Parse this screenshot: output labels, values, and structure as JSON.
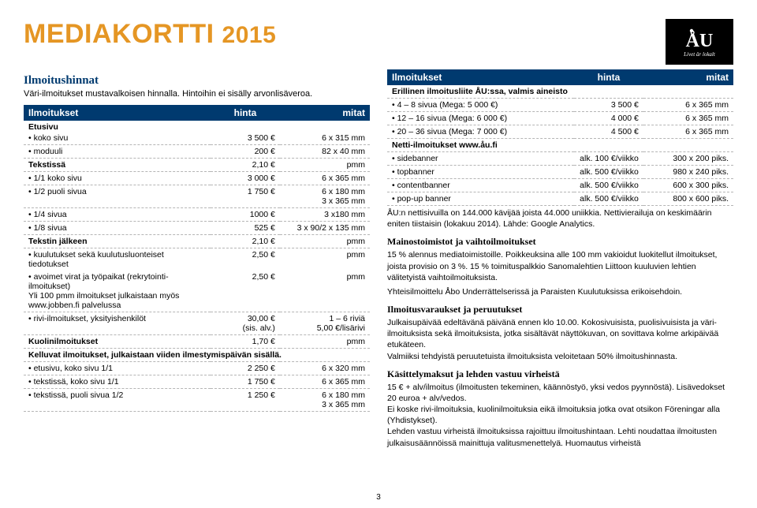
{
  "header": {
    "title_main": "MEDIAKORTTI",
    "title_year": "2015",
    "logo_tag": "Livet är lokalt"
  },
  "left": {
    "section": "Ilmoitushinnat",
    "intro": "Väri-ilmoitukset mustavalkoisen hinnalla. Hintoihin ei sisälly arvonlisäveroa.",
    "thead": [
      "Ilmoitukset",
      "hinta",
      "mitat"
    ],
    "rows": [
      {
        "c1": "Etusivu",
        "c2": "",
        "c3": "",
        "cls": "etusivu"
      },
      {
        "c1": "• koko sivu",
        "c2": "3 500 €",
        "c3": "6 x 315 mm"
      },
      {
        "c1": "• moduuli",
        "c2": "200 €",
        "c3": "82 x 40 mm"
      },
      {
        "c1": "Tekstissä",
        "c2": "2,10 €",
        "c3": "pmm",
        "bold": true
      },
      {
        "c1": "• 1/1 koko sivu",
        "c2": "3 000 €",
        "c3": "6 x 365 mm"
      },
      {
        "c1": "• 1/2 puoli sivua",
        "c2": "1 750 €",
        "c3": "6 x 180 mm\n3 x 365 mm"
      },
      {
        "c1": "• 1/4 sivua",
        "c2": "1000 €",
        "c3": "3 x180 mm"
      },
      {
        "c1": "• 1/8 sivua",
        "c2": "525 €",
        "c3": "3 x 90/2 x 135 mm"
      },
      {
        "c1": "Tekstin jälkeen",
        "c2": "2,10 €",
        "c3": "pmm",
        "bold": true
      },
      {
        "c1": "• kuulutukset sekä kuulutusluonteiset tiedotukset",
        "c2": "2,50 €",
        "c3": "pmm",
        "noborder": true
      },
      {
        "c1": "• avoimet virat ja työpaikat (rekrytointi-ilmoitukset)\nYli 100 pmm ilmoitukset julkaistaan myös\nwww.jobben.fi palvelussa",
        "c2": "2,50 €",
        "c3": "pmm"
      },
      {
        "c1": "• rivi-ilmoitukset, yksityishenkilöt",
        "c2": "30,00 €\n(sis. alv.)",
        "c3": "1 – 6 riviä\n5,00 €/lisärivi"
      },
      {
        "c1": "Kuolinilmoitukset",
        "c2": "1,70 €",
        "c3": "pmm",
        "bold": true
      },
      {
        "c1": "Kelluvat ilmoitukset, julkaistaan viiden ilmestymispäivän sisällä.",
        "c2": "",
        "c3": "",
        "bold": true,
        "span": true
      },
      {
        "c1": "• etusivu, koko sivu 1/1",
        "c2": "2 250 €",
        "c3": "6 x 320 mm"
      },
      {
        "c1": "• tekstissä, koko sivu 1/1",
        "c2": "1 750 €",
        "c3": "6 x 365 mm"
      },
      {
        "c1": "• tekstissä, puoli sivua 1/2",
        "c2": "1 250 €",
        "c3": "6 x 180 mm\n3 x 365 mm"
      }
    ]
  },
  "right": {
    "thead": [
      "Ilmoitukset",
      "hinta",
      "mitat"
    ],
    "pre_row": {
      "c1": "Erillinen ilmoitusliite ÅU:ssa, valmis aineisto",
      "bold": true,
      "span": true
    },
    "rows": [
      {
        "c1": "• 4 – 8 sivua (Mega: 5 000 €)",
        "c2": "3 500 €",
        "c3": "6 x 365 mm"
      },
      {
        "c1": "• 12 – 16 sivua (Mega: 6 000 €)",
        "c2": "4 000 €",
        "c3": "6 x 365 mm"
      },
      {
        "c1": "• 20 – 36 sivua (Mega: 7 000 €)",
        "c2": "4 500 €",
        "c3": "6 x 365 mm"
      },
      {
        "c1": "Netti-ilmoitukset   www.åu.fi",
        "c2": "",
        "c3": "",
        "bold": true,
        "span": true
      },
      {
        "c1": "• sidebanner",
        "c2": "alk. 100 €/viikko",
        "c3": "300 x 200 piks."
      },
      {
        "c1": "• topbanner",
        "c2": "alk. 500 €/viikko",
        "c3": "980 x 240 piks."
      },
      {
        "c1": "• contentbanner",
        "c2": "alk. 500 €/viikko",
        "c3": "600 x 300 piks."
      },
      {
        "c1": "• pop-up banner",
        "c2": "alk. 500 €/viikko",
        "c3": "800 x 600 piks."
      }
    ],
    "para1": "ÅU:n nettisivuilla on  144.000 kävijää joista 44.000 uniikkia. Nettivierailuja on keskimäärin eniten tiistaisin (lokakuu 2014). Lähde: Google Analytics.",
    "h_main": "Mainostoimistot ja vaihtoilmoitukset",
    "para_main": "15 % alennus mediatoimistoille. Poikkeuksina alle 100 mm vakioidut luokitellut ilmoitukset, joista provisio on 3 %. 15 % toimituspalkkio Sanomalehtien Liittoon kuuluvien lehtien  välitetyistä vaihtoilmoituksista.",
    "para_main2": "Yhteisilmoittelu Åbo Underrättelserissä ja Paraisten Kuulutuksissa erikoisehdoin.",
    "h_var": "Ilmoitusvaraukset ja peruutukset",
    "para_var": "Julkaisupäivää edeltävänä päivänä ennen klo 10.00. Kokosivuisista, puolisivuisista ja väri-ilmoituksista sekä ilmoituksista, jotka sisältävät näyttökuvan, on sovittava kolme arkipäivää etukäteen.\nValmiiksi tehdyistä peruutetuista ilmoituksista veloitetaan 50% ilmoitushinnasta.",
    "h_kas": "Käsittelymaksut ja lehden vastuu virheistä",
    "para_kas": "15 € + alv/ilmoitus (ilmoitusten tekeminen, käännöstyö, yksi vedos pyynnöstä). Lisävedokset 20 euroa + alv/vedos.\nEi koske rivi-ilmoituksia, kuolinilmoituksia eikä ilmoituksia jotka ovat otsikon Föreningar alla (Yhdistykset).\nLehden vastuu virheistä ilmoituksissa rajoittuu ilmoitushintaan. Lehti noudattaa ilmoitusten julkaisusäännöissä mainittuja valitusmenettelyä. Huomautus virheistä"
  },
  "pagenum": "3",
  "colors": {
    "accent": "#e59624",
    "navy": "#003a6f"
  }
}
